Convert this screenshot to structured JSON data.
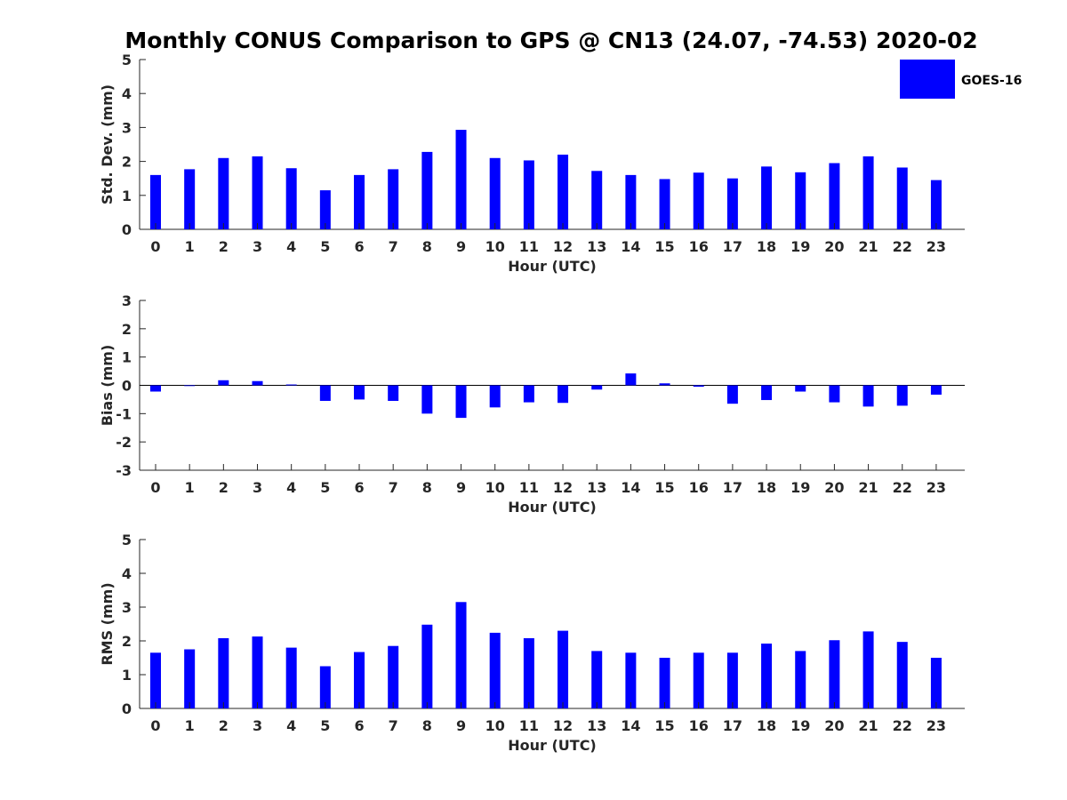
{
  "figure": {
    "title": "Monthly CONUS Comparison to GPS @ CN13 (24.07, -74.53) 2020-02",
    "legend": {
      "label": "GOES-16",
      "color": "#0000ff",
      "placement": "top-right"
    }
  },
  "chart_data": [
    {
      "type": "bar",
      "categories": [
        "0",
        "1",
        "2",
        "3",
        "4",
        "5",
        "6",
        "7",
        "8",
        "9",
        "10",
        "11",
        "12",
        "13",
        "14",
        "15",
        "16",
        "17",
        "18",
        "19",
        "20",
        "21",
        "22",
        "23"
      ],
      "series": [
        {
          "name": "GOES-16",
          "color": "#0000ff",
          "values": [
            1.6,
            1.77,
            2.1,
            2.15,
            1.8,
            1.15,
            1.6,
            1.77,
            2.28,
            2.93,
            2.1,
            2.03,
            2.2,
            1.72,
            1.6,
            1.48,
            1.67,
            1.5,
            1.85,
            1.68,
            1.95,
            2.15,
            1.82,
            1.45
          ]
        }
      ],
      "xlabel": "Hour (UTC)",
      "ylabel": "Std. Dev. (mm)",
      "ylim": [
        0,
        5
      ],
      "yticks": [
        "0",
        "1",
        "2",
        "3",
        "4",
        "5"
      ],
      "grid": false
    },
    {
      "type": "bar",
      "categories": [
        "0",
        "1",
        "2",
        "3",
        "4",
        "5",
        "6",
        "7",
        "8",
        "9",
        "10",
        "11",
        "12",
        "13",
        "14",
        "15",
        "16",
        "17",
        "18",
        "19",
        "20",
        "21",
        "22",
        "23"
      ],
      "series": [
        {
          "name": "GOES-16",
          "color": "#0000ff",
          "values": [
            -0.22,
            -0.02,
            0.18,
            0.15,
            0.03,
            -0.55,
            -0.5,
            -0.55,
            -1.0,
            -1.15,
            -0.78,
            -0.6,
            -0.62,
            -0.15,
            0.42,
            0.07,
            -0.05,
            -0.65,
            -0.52,
            -0.22,
            -0.6,
            -0.75,
            -0.72,
            -0.33
          ]
        }
      ],
      "xlabel": "Hour (UTC)",
      "ylabel": "Bias (mm)",
      "ylim": [
        -3,
        3
      ],
      "yticks": [
        "-3",
        "-2",
        "-1",
        "0",
        "1",
        "2",
        "3"
      ],
      "zero_line": true,
      "grid": false
    },
    {
      "type": "bar",
      "categories": [
        "0",
        "1",
        "2",
        "3",
        "4",
        "5",
        "6",
        "7",
        "8",
        "9",
        "10",
        "11",
        "12",
        "13",
        "14",
        "15",
        "16",
        "17",
        "18",
        "19",
        "20",
        "21",
        "22",
        "23"
      ],
      "series": [
        {
          "name": "GOES-16",
          "color": "#0000ff",
          "values": [
            1.65,
            1.75,
            2.08,
            2.13,
            1.8,
            1.25,
            1.67,
            1.85,
            2.48,
            3.15,
            2.24,
            2.08,
            2.3,
            1.7,
            1.65,
            1.5,
            1.65,
            1.65,
            1.92,
            1.7,
            2.02,
            2.28,
            1.97,
            1.5
          ]
        }
      ],
      "xlabel": "Hour (UTC)",
      "ylabel": "RMS (mm)",
      "ylim": [
        0,
        5
      ],
      "yticks": [
        "0",
        "1",
        "2",
        "3",
        "4",
        "5"
      ],
      "grid": false
    }
  ]
}
